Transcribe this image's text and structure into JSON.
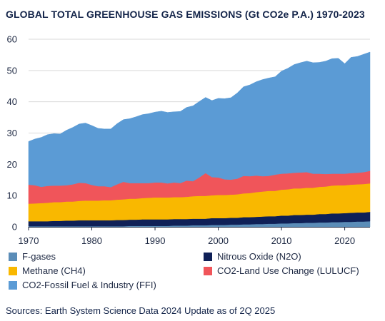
{
  "title": "GLOBAL TOTAL GREENHOUSE GAS EMISSIONS (Gt CO2e P.A.) 1970-2023",
  "source": "Sources: Earth System Science Data 2024 Update as of 2Q 2025",
  "chart_data": {
    "type": "area",
    "stacked": true,
    "title": "GLOBAL TOTAL GREENHOUSE GAS EMISSIONS (Gt CO2e P.A.) 1970-2023",
    "xlabel": "",
    "ylabel": "",
    "xlim": [
      1970,
      2024
    ],
    "ylim": [
      0,
      60
    ],
    "x_ticks": [
      1970,
      1980,
      1990,
      2000,
      2010,
      2020
    ],
    "x_tick_labels": [
      "1970",
      "1980",
      "1990",
      "2000",
      "2010",
      "2020"
    ],
    "y_ticks": [
      0,
      10,
      20,
      30,
      40,
      50,
      60
    ],
    "y_tick_labels": [
      "0",
      "10",
      "20",
      "30",
      "40",
      "50",
      "60"
    ],
    "grid": "horizontal",
    "legend_position": "bottom",
    "x": [
      1970,
      1971,
      1972,
      1973,
      1974,
      1975,
      1976,
      1977,
      1978,
      1979,
      1980,
      1981,
      1982,
      1983,
      1984,
      1985,
      1986,
      1987,
      1988,
      1989,
      1990,
      1991,
      1992,
      1993,
      1994,
      1995,
      1996,
      1997,
      1998,
      1999,
      2000,
      2001,
      2002,
      2003,
      2004,
      2005,
      2006,
      2007,
      2008,
      2009,
      2010,
      2011,
      2012,
      2013,
      2014,
      2015,
      2016,
      2017,
      2018,
      2019,
      2020,
      2021,
      2022,
      2023,
      2024
    ],
    "series": [
      {
        "name": "F-gases",
        "color": "#5b8db8",
        "values": [
          0.2,
          0.2,
          0.2,
          0.2,
          0.2,
          0.2,
          0.2,
          0.2,
          0.2,
          0.2,
          0.2,
          0.2,
          0.2,
          0.2,
          0.2,
          0.2,
          0.3,
          0.3,
          0.3,
          0.3,
          0.3,
          0.3,
          0.3,
          0.4,
          0.4,
          0.4,
          0.5,
          0.5,
          0.5,
          0.6,
          0.6,
          0.6,
          0.7,
          0.7,
          0.8,
          0.8,
          0.9,
          0.9,
          1.0,
          1.0,
          1.1,
          1.1,
          1.2,
          1.2,
          1.3,
          1.3,
          1.4,
          1.4,
          1.5,
          1.5,
          1.6,
          1.6,
          1.7,
          1.7,
          1.8
        ]
      },
      {
        "name": "Nitrous Oxide (N2O)",
        "color": "#0f2057",
        "values": [
          1.6,
          1.6,
          1.6,
          1.6,
          1.7,
          1.7,
          1.8,
          1.8,
          1.9,
          1.9,
          1.9,
          1.9,
          1.9,
          1.9,
          2.0,
          2.0,
          2.0,
          2.0,
          2.1,
          2.1,
          2.1,
          2.1,
          2.1,
          2.1,
          2.1,
          2.1,
          2.1,
          2.1,
          2.1,
          2.2,
          2.2,
          2.2,
          2.2,
          2.2,
          2.3,
          2.3,
          2.3,
          2.4,
          2.4,
          2.4,
          2.5,
          2.5,
          2.6,
          2.6,
          2.6,
          2.6,
          2.7,
          2.7,
          2.8,
          2.8,
          2.8,
          2.9,
          2.9,
          2.9,
          3.0
        ]
      },
      {
        "name": "Methane (CH4)",
        "color": "#f9b800",
        "values": [
          5.6,
          5.7,
          5.8,
          5.9,
          6.0,
          6.0,
          6.1,
          6.1,
          6.2,
          6.3,
          6.3,
          6.3,
          6.4,
          6.4,
          6.5,
          6.6,
          6.7,
          6.7,
          6.8,
          6.9,
          7.0,
          7.0,
          7.0,
          7.0,
          7.0,
          7.1,
          7.2,
          7.3,
          7.3,
          7.3,
          7.4,
          7.4,
          7.4,
          7.5,
          7.6,
          7.7,
          7.9,
          8.0,
          8.1,
          8.1,
          8.3,
          8.4,
          8.5,
          8.5,
          8.6,
          8.6,
          8.7,
          8.8,
          8.9,
          9.0,
          8.9,
          9.0,
          9.0,
          9.1,
          9.1
        ]
      },
      {
        "name": "CO2-Land Use Change (LULUCF)",
        "color": "#f0555a",
        "values": [
          6.1,
          5.8,
          5.2,
          5.4,
          5.3,
          5.3,
          5.2,
          5.5,
          5.8,
          5.6,
          5.0,
          4.6,
          4.5,
          4.2,
          4.9,
          5.6,
          5.0,
          5.0,
          4.8,
          4.7,
          4.8,
          4.8,
          4.5,
          4.7,
          4.5,
          5.2,
          4.8,
          5.9,
          7.3,
          5.8,
          5.6,
          5.0,
          4.8,
          5.0,
          5.6,
          5.4,
          5.3,
          4.9,
          4.8,
          5.2,
          5.1,
          5.1,
          5.0,
          5.1,
          5.0,
          4.5,
          4.2,
          4.0,
          3.8,
          3.7,
          3.7,
          3.7,
          3.7,
          3.8,
          4.0
        ]
      },
      {
        "name": "CO2-Fossil Fuel & Industry (FFI)",
        "color": "#5b9bd5",
        "values": [
          13.8,
          14.8,
          15.8,
          16.4,
          16.6,
          16.5,
          17.6,
          18.2,
          18.8,
          19.2,
          19.0,
          18.5,
          18.3,
          18.6,
          19.4,
          19.9,
          20.6,
          21.2,
          21.9,
          22.2,
          22.5,
          22.8,
          22.7,
          22.6,
          22.9,
          23.4,
          24.1,
          24.3,
          24.2,
          24.5,
          25.3,
          25.8,
          26.2,
          27.4,
          28.5,
          29.2,
          30.0,
          30.9,
          31.3,
          31.3,
          32.8,
          33.6,
          34.6,
          35.1,
          35.5,
          35.5,
          35.6,
          36.1,
          36.8,
          36.9,
          35.2,
          37.0,
          37.2,
          37.7,
          38.0
        ]
      }
    ],
    "legend": [
      {
        "label": "F-gases",
        "color": "#5b8db8"
      },
      {
        "label": "Nitrous Oxide (N2O)",
        "color": "#0f2057"
      },
      {
        "label": "Methane (CH4)",
        "color": "#f9b800"
      },
      {
        "label": "CO2-Land Use Change (LULUCF)",
        "color": "#f0555a"
      },
      {
        "label": "CO2-Fossil Fuel & Industry (FFI)",
        "color": "#5b9bd5"
      }
    ]
  }
}
